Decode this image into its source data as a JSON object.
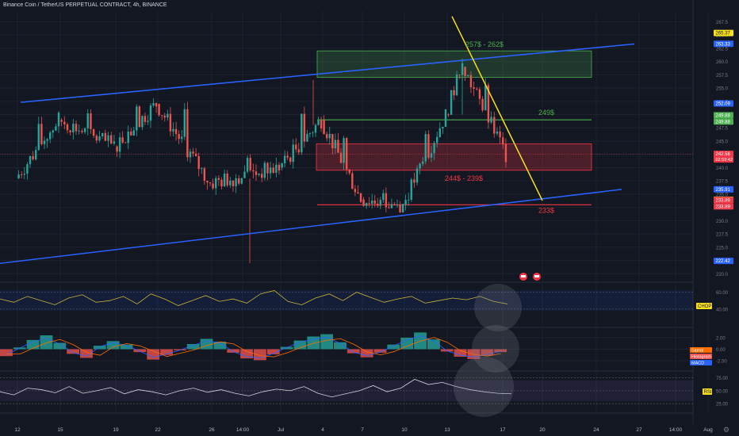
{
  "header": {
    "title": "Binance Coin / TetherUS PERPETUAL CONTRACT, 4h, BINANCE"
  },
  "colors": {
    "background": "#131722",
    "up": "#26a69a",
    "down": "#ef5350",
    "channel": "#2962ff",
    "trendline": "#f7e11d",
    "resistance_zone": "#4caf50",
    "support_zone": "#f23645",
    "indicator_line": "#b2b5be"
  },
  "chart_data": [
    {
      "type": "candlestick",
      "title": "Binance Coin / TetherUS PERPETUAL CONTRACT, 4h, BINANCE",
      "x_ticks": [
        "12",
        "15",
        "19",
        "22",
        "26",
        "14:00",
        "Jul",
        "4",
        "7",
        "10",
        "13",
        "17",
        "20",
        "24",
        "27",
        "14:00",
        "Aug"
      ],
      "y_ticks": [
        267.5,
        265.0,
        262.5,
        260.0,
        257.5,
        255.0,
        252.5,
        250.0,
        247.5,
        245.0,
        242.5,
        240.0,
        237.5,
        235.0,
        232.5,
        230.0,
        227.5,
        225.0,
        222.5,
        220.0
      ],
      "ylim": [
        219,
        269.5
      ],
      "series": [
        {
          "segment": "Jun 12-15",
          "open_start": 238,
          "close_end": 249,
          "high": 251.5,
          "low": 222
        },
        {
          "segment": "Jun 15-19",
          "open_start": 249,
          "close_end": 244,
          "high": 251,
          "low": 236
        },
        {
          "segment": "Jun 19-22",
          "open_start": 244,
          "close_end": 252,
          "high": 255.5,
          "low": 236
        },
        {
          "segment": "Jun 22-26",
          "open_start": 252,
          "close_end": 237,
          "high": 255,
          "low": 233
        },
        {
          "segment": "Jun 26-Jul 1",
          "open_start": 237,
          "close_end": 240,
          "high": 245,
          "low": 222
        },
        {
          "segment": "Jul 1-4",
          "open_start": 240,
          "close_end": 249,
          "high": 256.5,
          "low": 238
        },
        {
          "segment": "Jul 4-7",
          "open_start": 249,
          "close_end": 234,
          "high": 250,
          "low": 232.5
        },
        {
          "segment": "Jul 7-10",
          "open_start": 234,
          "close_end": 233,
          "high": 236.5,
          "low": 231.5
        },
        {
          "segment": "Jul 10-13",
          "open_start": 233,
          "close_end": 250,
          "high": 251,
          "low": 231.5
        },
        {
          "segment": "Jul 13-14",
          "open_start": 250,
          "close_end": 259,
          "high": 260.5,
          "low": 244
        },
        {
          "segment": "Jul 14-17",
          "open_start": 259,
          "close_end": 242.5,
          "high": 259,
          "low": 240
        }
      ],
      "price_labels": [
        {
          "value": "265.37",
          "color": "#f7e11d"
        },
        {
          "value": "263.33",
          "color": "#2962ff"
        },
        {
          "value": "252.09",
          "color": "#2962ff"
        },
        {
          "value": "249.88",
          "color": "#4caf50"
        },
        {
          "value": "249.88",
          "color": "#4caf50"
        },
        {
          "value": "242.58",
          "color": "#f23645",
          "sub": "02:59:42"
        },
        {
          "value": "235.91",
          "color": "#2962ff"
        },
        {
          "value": "233.95",
          "color": "#f7e11d"
        },
        {
          "value": "233.89",
          "color": "#f23645"
        },
        {
          "value": "233.89",
          "color": "#f23645"
        },
        {
          "value": "222.42",
          "color": "#2962ff"
        }
      ],
      "annotations": [
        {
          "text": "257$ - 262$",
          "kind": "resistance_zone",
          "from": 257.0,
          "to": 262.0
        },
        {
          "text": "249$",
          "kind": "level",
          "value": 249
        },
        {
          "text": "244$ - 239$",
          "kind": "support_zone",
          "from": 239.5,
          "to": 244.5
        },
        {
          "text": "233$",
          "kind": "level",
          "value": 233
        }
      ],
      "channel_upper": [
        [
          "Jun 12",
          252.3
        ],
        [
          "Jul 28",
          263.3
        ]
      ],
      "channel_lower": [
        [
          "Jun 12",
          222.4
        ],
        [
          "Jul 28",
          235.9
        ]
      ],
      "trendline": [
        [
          "Jul 13",
          268.5
        ],
        [
          "Jul 19",
          233.8
        ]
      ]
    },
    {
      "type": "line",
      "title": "CHOP",
      "y_ticks": [
        60.0,
        40.0
      ],
      "values": [
        52,
        48,
        55,
        50,
        45,
        53,
        57,
        48,
        50,
        55,
        46,
        58,
        52,
        44,
        50,
        56,
        49,
        52,
        47,
        58,
        62,
        49,
        45,
        53,
        58,
        50,
        60,
        54,
        48,
        52,
        55,
        47,
        50,
        53,
        51,
        55,
        49,
        46
      ]
    },
    {
      "type": "bar",
      "title": "MACD",
      "series_names": [
        "Signal",
        "Histogram",
        "MACD"
      ],
      "y_ticks": [
        2.0,
        0.0,
        -2.0
      ],
      "values": [
        -1.2,
        0.3,
        1.6,
        2.4,
        1.1,
        -0.8,
        -1.5,
        0.6,
        1.4,
        0.8,
        -0.5,
        -1.8,
        -1.0,
        -0.2,
        0.9,
        1.8,
        1.3,
        -0.6,
        -1.6,
        -1.9,
        -0.9,
        0.4,
        1.5,
        2.2,
        2.6,
        1.2,
        -0.7,
        -1.4,
        -0.6,
        0.8,
        2.0,
        2.9,
        1.7,
        -0.4,
        -1.3,
        -1.7,
        -1.1,
        -0.5
      ]
    },
    {
      "type": "line",
      "title": "RSI",
      "y_ticks": [
        75.0,
        50.0,
        25.0
      ],
      "values": [
        48,
        42,
        55,
        52,
        46,
        58,
        45,
        50,
        56,
        44,
        52,
        48,
        42,
        50,
        55,
        47,
        52,
        45,
        40,
        48,
        53,
        50,
        58,
        45,
        38,
        44,
        50,
        60,
        48,
        55,
        72,
        62,
        66,
        58,
        52,
        48,
        45,
        44
      ]
    }
  ]
}
